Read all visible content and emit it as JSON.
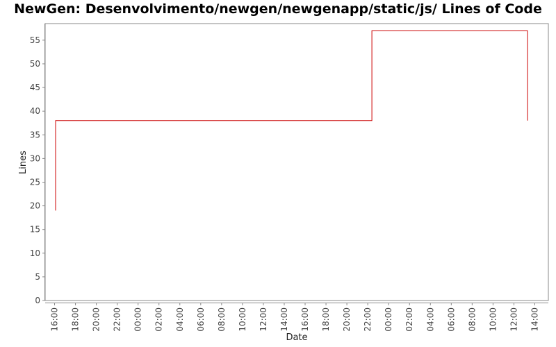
{
  "chart_data": {
    "type": "line",
    "title": "NewGen: Desenvolvimento/newgen/newgenapp/static/js/ Lines of Code",
    "xlabel": "Date",
    "ylabel": "Lines",
    "ylim": [
      0,
      58.5
    ],
    "y_ticks": [
      "0",
      "5",
      "10",
      "15",
      "20",
      "25",
      "30",
      "35",
      "40",
      "45",
      "50",
      "55"
    ],
    "x_ticks": [
      "16:00",
      "18:00",
      "20:00",
      "22:00",
      "00:00",
      "02:00",
      "04:00",
      "06:00",
      "08:00",
      "10:00",
      "12:00",
      "14:00",
      "16:00",
      "18:00",
      "20:00",
      "22:00",
      "00:00",
      "02:00",
      "04:00",
      "06:00",
      "08:00",
      "10:00",
      "12:00",
      "14:00"
    ],
    "x_tick_hours": [
      16,
      18,
      20,
      22,
      24,
      26,
      28,
      30,
      32,
      34,
      36,
      38,
      40,
      42,
      44,
      46,
      48,
      50,
      52,
      54,
      56,
      58,
      60,
      62
    ],
    "xlim_hours": [
      15.1,
      63.3
    ],
    "grid": false,
    "series": [
      {
        "step": true,
        "color": "#cc0000",
        "x_hours": [
          16.1,
          16.1,
          46.4,
          46.4,
          61.3,
          61.3
        ],
        "values": [
          19,
          38,
          38,
          57,
          57,
          38
        ]
      }
    ]
  }
}
